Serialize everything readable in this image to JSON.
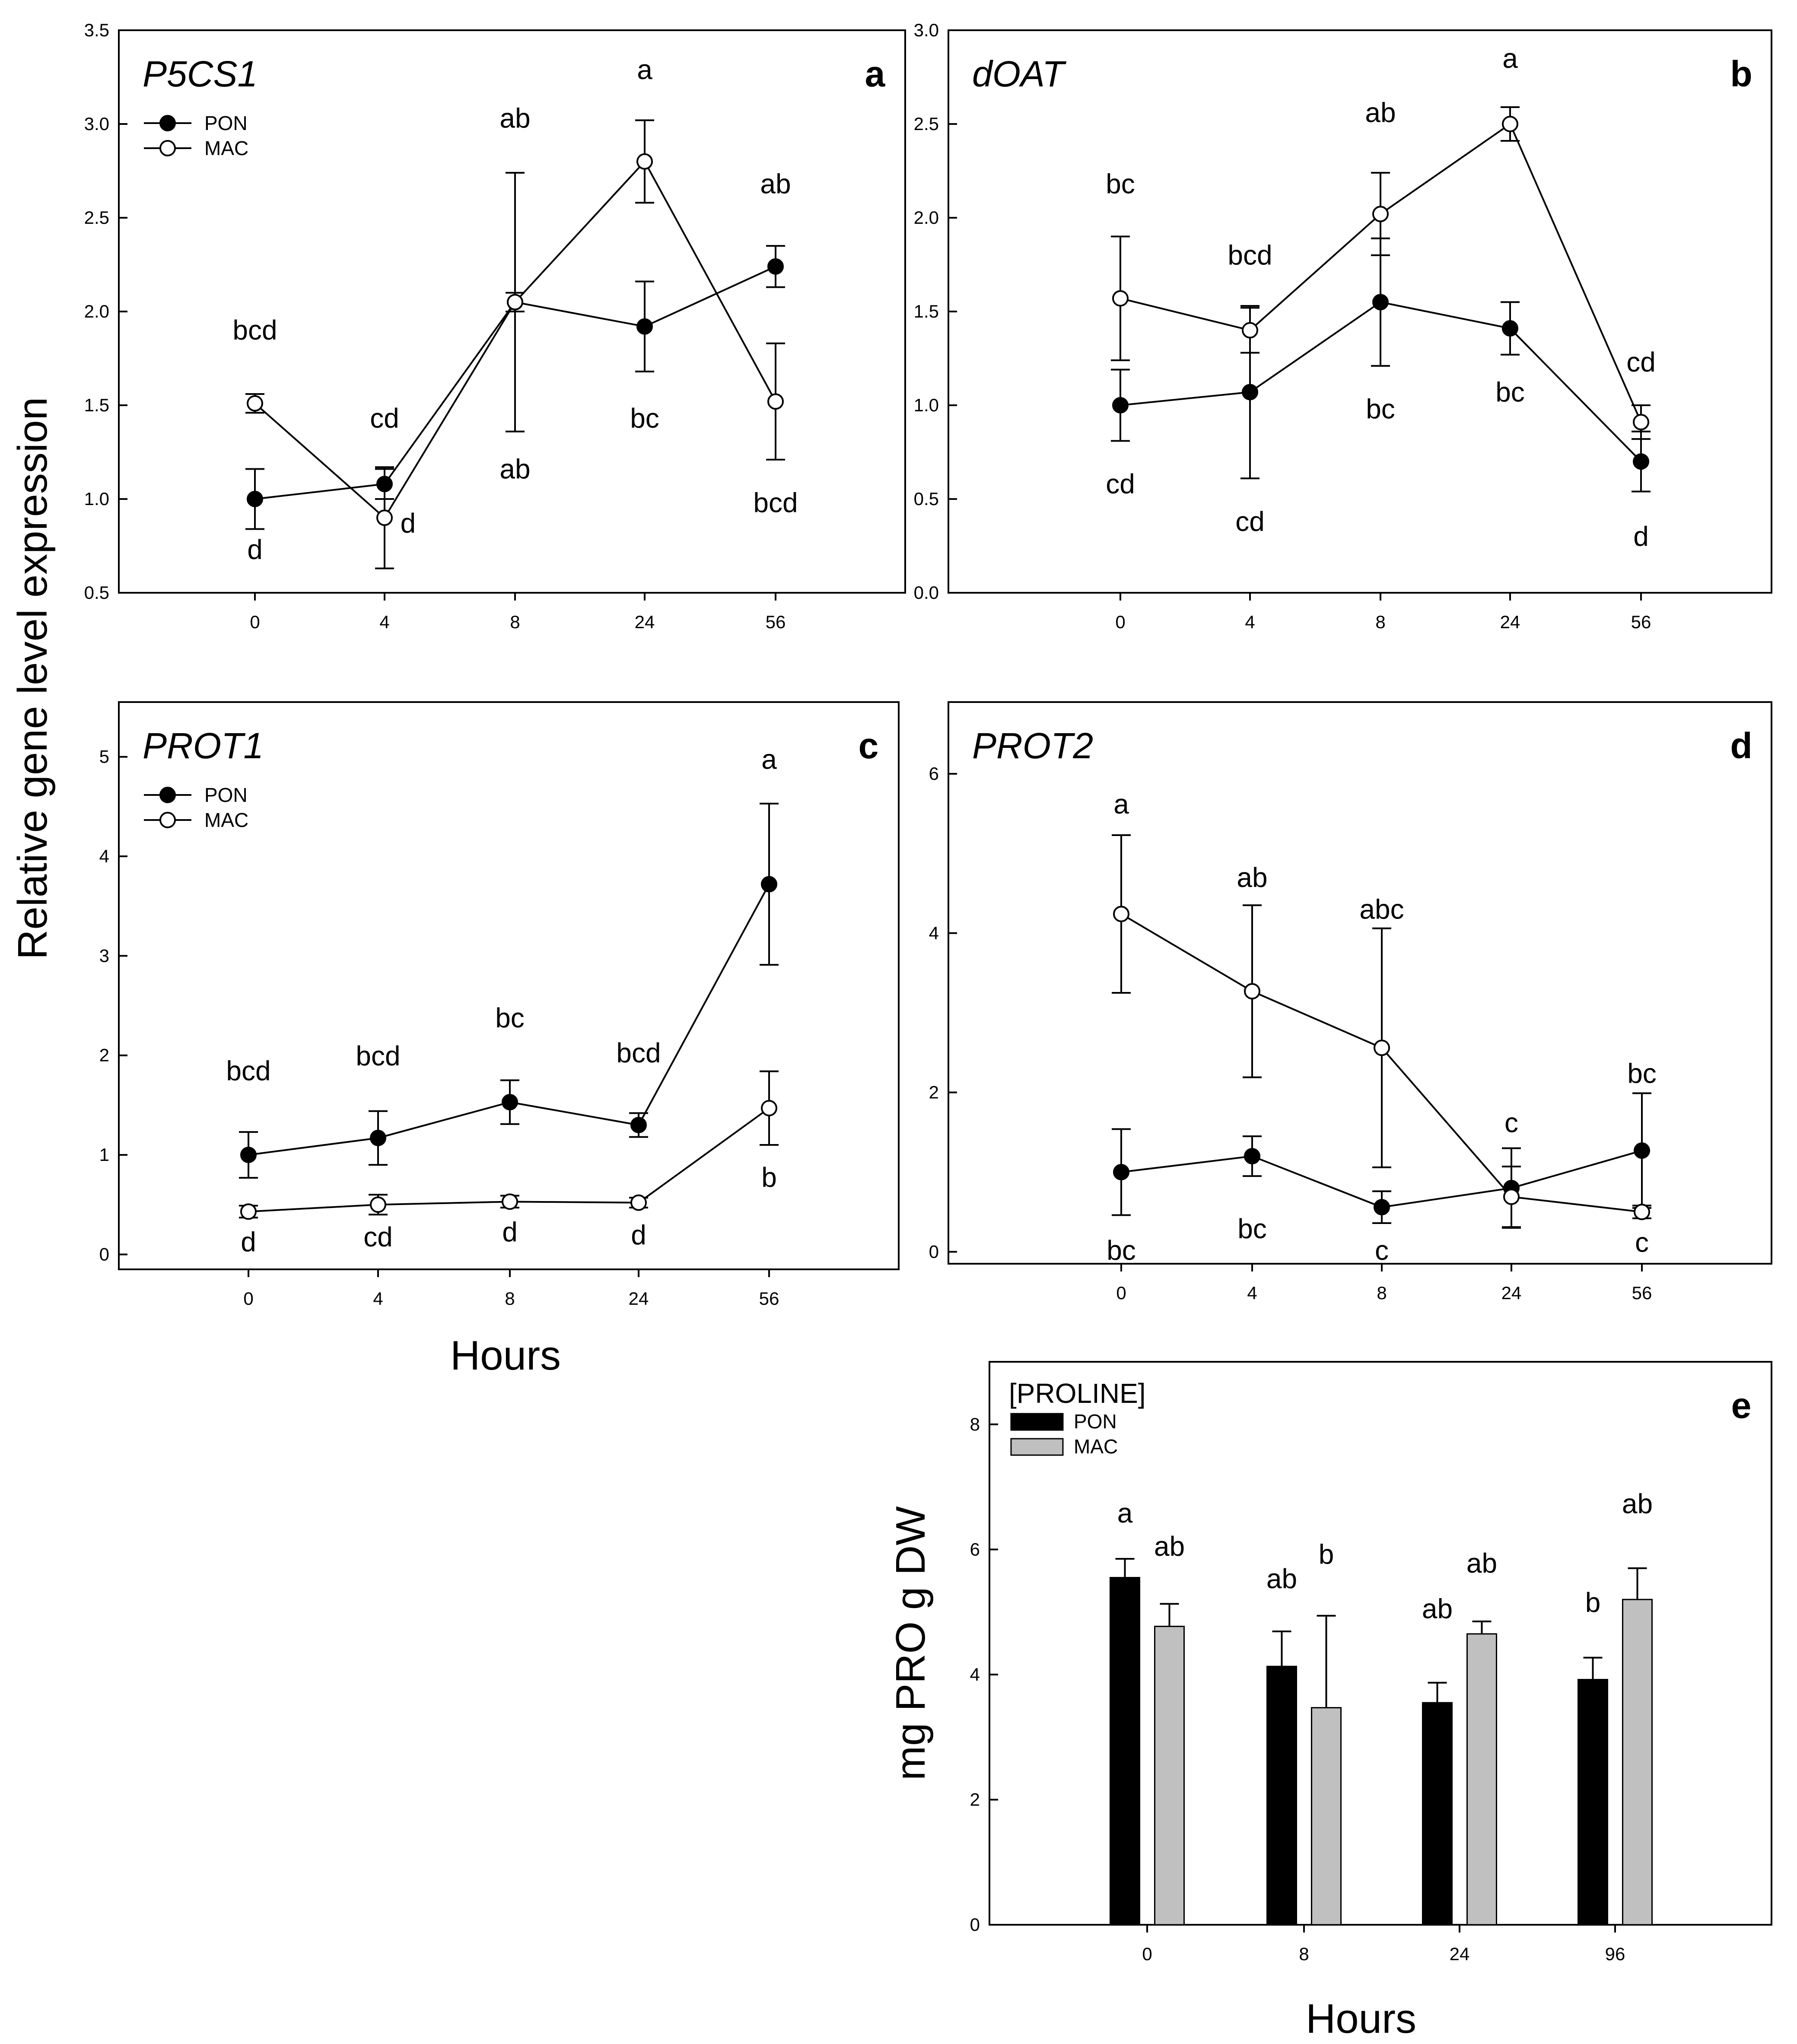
{
  "ylabel_shared": "Relative gene level expression",
  "xlabel_shared": "Hours",
  "chart_data": [
    {
      "id": "a",
      "type": "line",
      "title": "P5CS1",
      "panel_letter": "a",
      "ylim": [
        0.5,
        3.5
      ],
      "yticks": [
        0.5,
        1.0,
        1.5,
        2.0,
        2.5,
        3.0,
        3.5
      ],
      "ytick_labels": [
        "0.5",
        "1.0",
        "1.5",
        "2.0",
        "2.5",
        "3.0",
        "3.5"
      ],
      "categories": [
        "0",
        "4",
        "8",
        "24",
        "56"
      ],
      "legend": [
        "PON",
        "MAC"
      ],
      "series": [
        {
          "name": "PON",
          "marker": "filled",
          "values": [
            1.0,
            1.08,
            2.05,
            1.92,
            2.24
          ],
          "err": [
            0.16,
            0.08,
            0.69,
            0.24,
            0.11
          ],
          "letters": [
            "d",
            "cd",
            "ab",
            "bc",
            "ab"
          ]
        },
        {
          "name": "MAC",
          "marker": "open",
          "values": [
            1.51,
            0.9,
            2.05,
            2.8,
            1.52
          ],
          "err": [
            0.05,
            0.27,
            0.05,
            0.22,
            0.31
          ],
          "letters": [
            "bcd",
            "d",
            "ab",
            "a",
            "bcd"
          ]
        }
      ],
      "letter_positions": [
        {
          "t": "bcd",
          "xi": 0,
          "y": 1.85
        },
        {
          "t": "d",
          "xi": 0,
          "y": 0.68
        },
        {
          "t": "cd",
          "xi": 1,
          "y": 1.38
        },
        {
          "t": "d",
          "xi": 1.18,
          "y": 0.82
        },
        {
          "t": "ab",
          "xi": 2,
          "y": 2.98
        },
        {
          "t": "ab",
          "xi": 2,
          "y": 1.11
        },
        {
          "t": "a",
          "xi": 3,
          "y": 3.24
        },
        {
          "t": "bc",
          "xi": 3,
          "y": 1.38
        },
        {
          "t": "ab",
          "xi": 4,
          "y": 2.63
        },
        {
          "t": "bcd",
          "xi": 4,
          "y": 0.93
        }
      ]
    },
    {
      "id": "b",
      "type": "line",
      "title": "dOAT",
      "panel_letter": "b",
      "ylim": [
        0.0,
        3.0
      ],
      "yticks": [
        0.0,
        0.5,
        1.0,
        1.5,
        2.0,
        2.5,
        3.0
      ],
      "ytick_labels": [
        "0.0",
        "0.5",
        "1.0",
        "1.5",
        "2.0",
        "2.5",
        "3.0"
      ],
      "categories": [
        "0",
        "4",
        "8",
        "24",
        "56"
      ],
      "legend": [],
      "series": [
        {
          "name": "PON",
          "marker": "filled",
          "values": [
            1.0,
            1.07,
            1.55,
            1.41,
            0.7
          ],
          "err": [
            0.19,
            0.46,
            0.34,
            0.14,
            0.16
          ],
          "letters": [
            "cd",
            "cd",
            "bc",
            "bc",
            "d"
          ]
        },
        {
          "name": "MAC",
          "marker": "open",
          "values": [
            1.57,
            1.4,
            2.02,
            2.5,
            0.91
          ],
          "err": [
            0.33,
            0.12,
            0.22,
            0.09,
            0.09
          ],
          "letters": [
            "bc",
            "bcd",
            "ab",
            "a",
            "cd"
          ]
        }
      ],
      "letter_positions": [
        {
          "t": "bc",
          "xi": 0,
          "y": 2.13
        },
        {
          "t": "cd",
          "xi": 0,
          "y": 0.53
        },
        {
          "t": "bcd",
          "xi": 1,
          "y": 1.75
        },
        {
          "t": "cd",
          "xi": 1,
          "y": 0.33
        },
        {
          "t": "ab",
          "xi": 2,
          "y": 2.51
        },
        {
          "t": "bc",
          "xi": 2,
          "y": 0.93
        },
        {
          "t": "a",
          "xi": 3,
          "y": 2.8
        },
        {
          "t": "bc",
          "xi": 3,
          "y": 1.02
        },
        {
          "t": "cd",
          "xi": 4,
          "y": 1.18
        },
        {
          "t": "d",
          "xi": 4,
          "y": 0.25
        }
      ]
    },
    {
      "id": "c",
      "type": "line",
      "title": "PROT1",
      "panel_letter": "c",
      "ylim": [
        -0.15,
        5.55
      ],
      "yticks": [
        0,
        1,
        2,
        3,
        4,
        5
      ],
      "ytick_labels": [
        "0",
        "1",
        "2",
        "3",
        "4",
        "5"
      ],
      "categories": [
        "0",
        "4",
        "8",
        "24",
        "56"
      ],
      "legend": [
        "PON",
        "MAC"
      ],
      "series": [
        {
          "name": "PON",
          "marker": "filled",
          "values": [
            1.0,
            1.17,
            1.53,
            1.3,
            3.72
          ],
          "err": [
            0.23,
            0.27,
            0.22,
            0.12,
            0.81
          ],
          "letters": [
            "bcd",
            "bcd",
            "bc",
            "bcd",
            "a"
          ]
        },
        {
          "name": "MAC",
          "marker": "open",
          "values": [
            0.43,
            0.5,
            0.53,
            0.52,
            1.47
          ],
          "err": [
            0.06,
            0.1,
            0.06,
            0.05,
            0.37
          ],
          "letters": [
            "d",
            "cd",
            "d",
            "d",
            "b"
          ]
        }
      ],
      "letter_positions": [
        {
          "t": "bcd",
          "xi": 0,
          "y": 1.75
        },
        {
          "t": "d",
          "xi": 0,
          "y": 0.03
        },
        {
          "t": "bcd",
          "xi": 1,
          "y": 1.9
        },
        {
          "t": "cd",
          "xi": 1,
          "y": 0.08
        },
        {
          "t": "bc",
          "xi": 2,
          "y": 2.28
        },
        {
          "t": "d",
          "xi": 2,
          "y": 0.13
        },
        {
          "t": "bcd",
          "xi": 3,
          "y": 1.93
        },
        {
          "t": "d",
          "xi": 3,
          "y": 0.1
        },
        {
          "t": "a",
          "xi": 4,
          "y": 4.88
        },
        {
          "t": "b",
          "xi": 4,
          "y": 0.68
        }
      ]
    },
    {
      "id": "d",
      "type": "line",
      "title": "PROT2",
      "panel_letter": "d",
      "ylim": [
        -0.15,
        6.9
      ],
      "yticks": [
        0,
        2,
        4,
        6
      ],
      "ytick_labels": [
        "0",
        "2",
        "4",
        "6"
      ],
      "categories": [
        "0",
        "4",
        "8",
        "24",
        "56"
      ],
      "legend": [],
      "series": [
        {
          "name": "PON",
          "marker": "filled",
          "values": [
            1.0,
            1.2,
            0.56,
            0.8,
            1.27
          ],
          "err": [
            0.54,
            0.25,
            0.2,
            0.5,
            0.72
          ],
          "letters": [
            "bc",
            "bc",
            "c",
            "c",
            "bc"
          ]
        },
        {
          "name": "MAC",
          "marker": "open",
          "values": [
            4.24,
            3.27,
            2.56,
            0.69,
            0.5
          ],
          "err": [
            0.99,
            1.08,
            1.5,
            0.38,
            0.08
          ],
          "letters": [
            "a",
            "ab",
            "abc",
            "c",
            "c"
          ]
        }
      ],
      "letter_positions": [
        {
          "t": "a",
          "xi": 0,
          "y": 5.5
        },
        {
          "t": "bc",
          "xi": 0,
          "y": -0.1
        },
        {
          "t": "ab",
          "xi": 1,
          "y": 4.58
        },
        {
          "t": "bc",
          "xi": 1,
          "y": 0.17
        },
        {
          "t": "abc",
          "xi": 2,
          "y": 4.18
        },
        {
          "t": "c",
          "xi": 2,
          "y": -0.1
        },
        {
          "t": "c",
          "xi": 3,
          "y": 1.5
        },
        {
          "t": "bc",
          "xi": 4,
          "y": 2.12
        },
        {
          "t": "c",
          "xi": 4,
          "y": 0.0
        }
      ]
    },
    {
      "id": "e",
      "type": "bar",
      "title": "[PROLINE]",
      "panel_letter": "e",
      "ylabel": "mg PRO g DW",
      "xlabel": "Hours",
      "ylim": [
        0,
        9
      ],
      "yticks": [
        0,
        2,
        4,
        6,
        8
      ],
      "ytick_labels": [
        "0",
        "2",
        "4",
        "6",
        "8"
      ],
      "categories": [
        "0",
        "8",
        "24",
        "96"
      ],
      "legend": [
        "PON",
        "MAC"
      ],
      "series": [
        {
          "name": "PON",
          "color": "#000000",
          "values": [
            5.55,
            4.13,
            3.55,
            3.92
          ],
          "err": [
            0.3,
            0.56,
            0.32,
            0.35
          ],
          "letters": [
            "a",
            "ab",
            "ab",
            "b"
          ]
        },
        {
          "name": "MAC",
          "color": "#c0c0c0",
          "values": [
            4.77,
            3.47,
            4.65,
            5.2
          ],
          "err": [
            0.36,
            1.47,
            0.2,
            0.5
          ],
          "letters": [
            "ab",
            "b",
            "ab",
            "ab"
          ]
        }
      ],
      "letter_positions": [
        {
          "t": "a",
          "xi": 0,
          "s": 0,
          "y": 6.43
        },
        {
          "t": "ab",
          "xi": 0,
          "s": 1,
          "y": 5.9
        },
        {
          "t": "ab",
          "xi": 1,
          "s": 0,
          "y": 5.38
        },
        {
          "t": "b",
          "xi": 1,
          "s": 1,
          "y": 5.77
        },
        {
          "t": "ab",
          "xi": 2,
          "s": 0,
          "y": 4.9
        },
        {
          "t": "ab",
          "xi": 2,
          "s": 1,
          "y": 5.63
        },
        {
          "t": "b",
          "xi": 3,
          "s": 0,
          "y": 5.0
        },
        {
          "t": "ab",
          "xi": 3,
          "s": 1,
          "y": 6.58
        }
      ]
    }
  ]
}
